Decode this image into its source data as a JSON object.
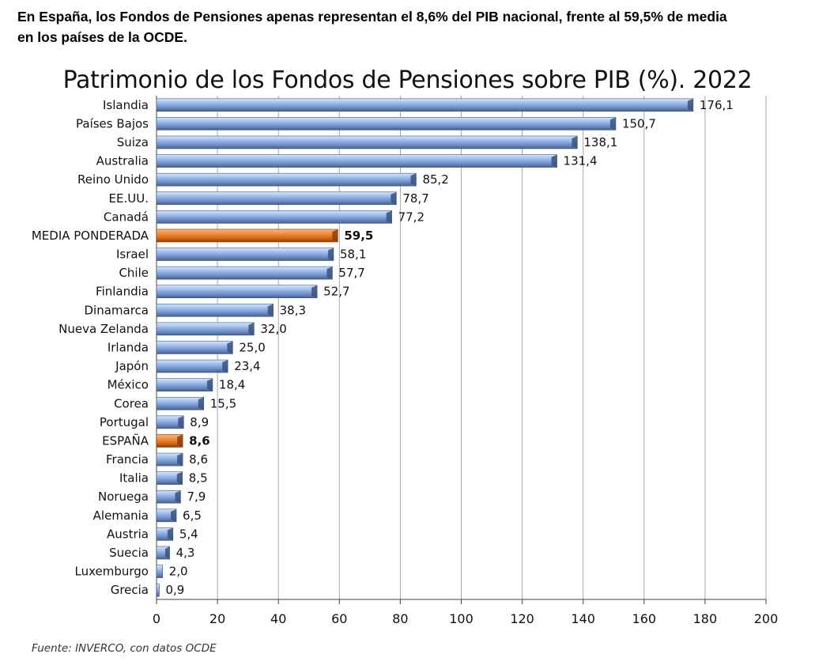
{
  "headline": {
    "line1": "En España, los Fondos de Pensiones apenas representan el 8,6% del PIB nacional, frente al 59,5% de media",
    "line2": "en los países de la OCDE."
  },
  "source": "Fuente: INVERCO, con datos OCDE",
  "chart_data": {
    "type": "bar",
    "orientation": "horizontal",
    "title": "Patrimonio de los Fondos de Pensiones sobre PIB (%). 2022",
    "xlabel": "",
    "ylabel": "",
    "xlim": [
      0,
      200
    ],
    "xticks": [
      0,
      20,
      40,
      60,
      80,
      100,
      120,
      140,
      160,
      180,
      200
    ],
    "grid": "vertical",
    "legend": "none",
    "colors": {
      "default": "#6e8fc4",
      "highlight": "#e06a1a"
    },
    "categories": [
      "Islandia",
      "Países Bajos",
      "Suiza",
      "Australia",
      "Reino Unido",
      "EE.UU.",
      "Canadá",
      "MEDIA PONDERADA",
      "Israel",
      "Chile",
      "Finlandia",
      "Dinamarca",
      "Nueva Zelanda",
      "Irlanda",
      "Japón",
      "México",
      "Corea",
      "Portugal",
      "ESPAÑA",
      "Francia",
      "Italia",
      "Noruega",
      "Alemania",
      "Austria",
      "Suecia",
      "Luxemburgo",
      "Grecia"
    ],
    "values": [
      176.1,
      150.7,
      138.1,
      131.4,
      85.2,
      78.7,
      77.2,
      59.5,
      58.1,
      57.7,
      52.7,
      38.3,
      32.0,
      25.0,
      23.4,
      18.4,
      15.5,
      8.9,
      8.6,
      8.6,
      8.5,
      7.9,
      6.5,
      5.4,
      4.3,
      2.0,
      0.9
    ],
    "data_labels": [
      "176,1",
      "150,7",
      "138,1",
      "131,4",
      "85,2",
      "78,7",
      "77,2",
      "59,5",
      "58,1",
      "57,7",
      "52,7",
      "38,3",
      "32,0",
      "25,0",
      "23,4",
      "18,4",
      "15,5",
      "8,9",
      "8,6",
      "8,6",
      "8,5",
      "7,9",
      "6,5",
      "5,4",
      "4,3",
      "2,0",
      "0,9"
    ],
    "highlighted": [
      "MEDIA PONDERADA",
      "ESPAÑA"
    ]
  }
}
